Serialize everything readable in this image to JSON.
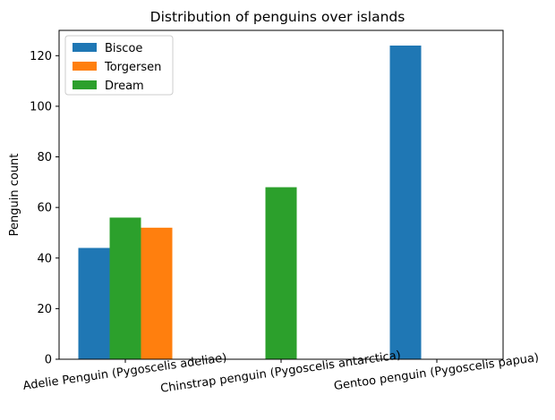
{
  "chart_data": {
    "type": "bar",
    "title": "Distribution of penguins over islands",
    "xlabel": "",
    "ylabel": "Penguin count",
    "categories": [
      "Adelie Penguin (Pygoscelis adeliae)",
      "Chinstrap penguin (Pygoscelis antarctica)",
      "Gentoo penguin (Pygoscelis papua)"
    ],
    "series": [
      {
        "name": "Biscoe",
        "color": "#1f77b4",
        "values": [
          44,
          0,
          124
        ]
      },
      {
        "name": "Torgersen",
        "color": "#ff7f0e",
        "values": [
          52,
          0,
          0
        ]
      },
      {
        "name": "Dream",
        "color": "#2ca02c",
        "values": [
          56,
          68,
          0
        ]
      }
    ],
    "ylim": [
      0,
      130
    ],
    "yticks": [
      0,
      20,
      40,
      60,
      80,
      100,
      120
    ],
    "legend_position": "top-left",
    "grid": false
  }
}
